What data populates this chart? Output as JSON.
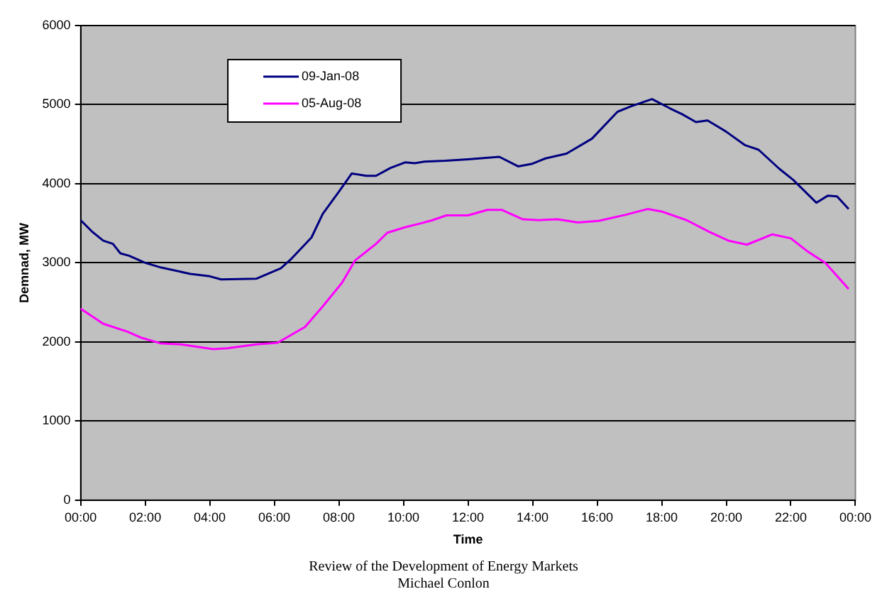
{
  "chart_data": {
    "type": "line",
    "xlabel": "Time",
    "ylabel": "Demnad, MW",
    "annotations": [
      "Review of the Development of Energy Markets",
      "Michael Conlon"
    ],
    "xlim": [
      0,
      24
    ],
    "xticks": [
      {
        "value": 0,
        "label": "00:00"
      },
      {
        "value": 2,
        "label": "02:00"
      },
      {
        "value": 4,
        "label": "04:00"
      },
      {
        "value": 6,
        "label": "06:00"
      },
      {
        "value": 8,
        "label": "08:00"
      },
      {
        "value": 10,
        "label": "10:00"
      },
      {
        "value": 12,
        "label": "12:00"
      },
      {
        "value": 14,
        "label": "14:00"
      },
      {
        "value": 16,
        "label": "16:00"
      },
      {
        "value": 18,
        "label": "18:00"
      },
      {
        "value": 20,
        "label": "20:00"
      },
      {
        "value": 22,
        "label": "22:00"
      },
      {
        "value": 24,
        "label": "00:00"
      }
    ],
    "ylim": [
      0,
      6000
    ],
    "yticks": [
      0,
      1000,
      2000,
      3000,
      4000,
      5000,
      6000
    ],
    "grid": "y",
    "legend": "top left",
    "marker": "none",
    "line_style": "solid",
    "series": [
      {
        "name": "09-Jan-08",
        "color": "#000080",
        "x": [
          0,
          0.34,
          0.7,
          1.0,
          1.23,
          1.5,
          2.0,
          2.5,
          3.4,
          4.0,
          4.35,
          5.45,
          6.2,
          6.5,
          7.15,
          7.5,
          8.0,
          8.4,
          8.85,
          9.15,
          9.6,
          10.05,
          10.35,
          10.65,
          11.3,
          12.0,
          12.97,
          13.55,
          13.97,
          14.4,
          15.05,
          15.84,
          16.63,
          17.06,
          17.7,
          18.27,
          18.63,
          19.06,
          19.42,
          19.99,
          20.57,
          21.0,
          21.64,
          22.07,
          22.79,
          23.15,
          23.43,
          23.79
        ],
        "values": [
          3540,
          3400,
          3280,
          3240,
          3120,
          3090,
          3000,
          2940,
          2860,
          2830,
          2790,
          2800,
          2930,
          3040,
          3320,
          3620,
          3900,
          4130,
          4100,
          4100,
          4200,
          4270,
          4260,
          4280,
          4290,
          4310,
          4340,
          4220,
          4250,
          4320,
          4380,
          4570,
          4910,
          4980,
          5070,
          4950,
          4880,
          4780,
          4800,
          4660,
          4490,
          4430,
          4190,
          4050,
          3760,
          3850,
          3840,
          3680
        ]
      },
      {
        "name": "05-Aug-08",
        "color": "#ff00ff",
        "x": [
          0,
          0.7,
          1.45,
          1.9,
          2.5,
          3.1,
          4.1,
          4.55,
          5.45,
          6.1,
          6.95,
          7.5,
          8.1,
          8.5,
          9.15,
          9.5,
          10.05,
          10.55,
          10.9,
          11.33,
          12.0,
          12.6,
          13.04,
          13.7,
          14.2,
          14.77,
          15.4,
          16.05,
          16.91,
          17.56,
          17.99,
          18.77,
          19.48,
          20.07,
          20.64,
          21.42,
          22.0,
          22.5,
          23.07,
          23.79
        ],
        "values": [
          2420,
          2230,
          2130,
          2050,
          1980,
          1970,
          1910,
          1920,
          1970,
          1990,
          2190,
          2450,
          2750,
          3030,
          3240,
          3380,
          3450,
          3500,
          3540,
          3600,
          3600,
          3670,
          3670,
          3550,
          3540,
          3550,
          3510,
          3530,
          3610,
          3680,
          3650,
          3540,
          3390,
          3280,
          3230,
          3360,
          3310,
          3150,
          3000,
          2670
        ]
      }
    ]
  }
}
